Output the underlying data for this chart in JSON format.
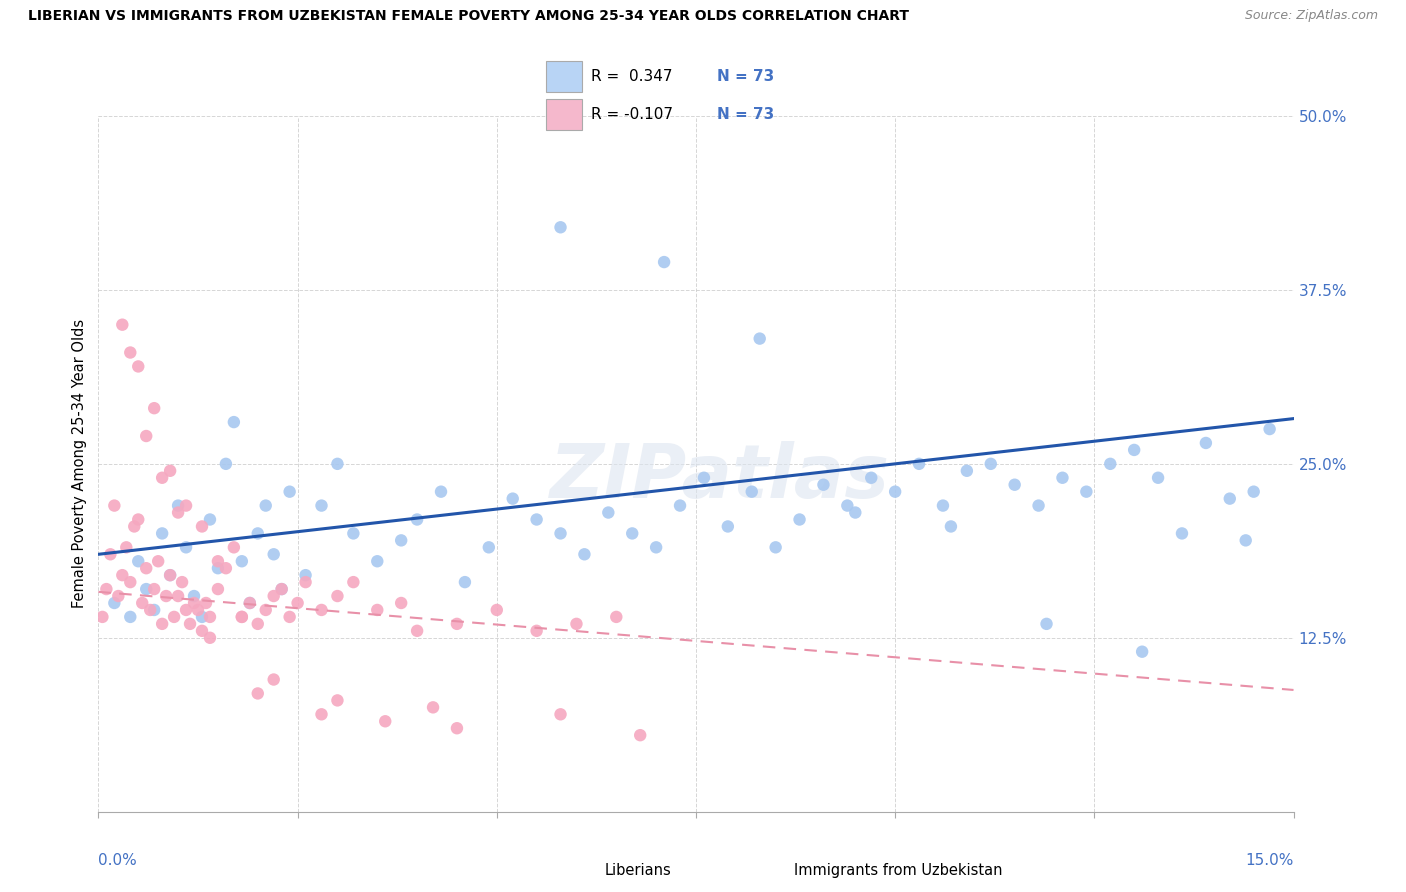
{
  "title": "LIBERIAN VS IMMIGRANTS FROM UZBEKISTAN FEMALE POVERTY AMONG 25-34 YEAR OLDS CORRELATION CHART",
  "source": "Source: ZipAtlas.com",
  "ylabel_axis_label": "Female Poverty Among 25-34 Year Olds",
  "xmin": 0.0,
  "xmax": 15.0,
  "ymin": 0.0,
  "ymax": 50.0,
  "yticks": [
    0,
    12.5,
    25.0,
    37.5,
    50.0
  ],
  "ytick_labels": [
    "",
    "12.5%",
    "25.0%",
    "37.5%",
    "50.0%"
  ],
  "legend_r_blue": "R =  0.347",
  "legend_n_blue": "N = 73",
  "legend_r_pink": "R = -0.107",
  "legend_n_pink": "N = 73",
  "watermark": "ZIPatlas",
  "blue_dot_color": "#a8c8f0",
  "pink_dot_color": "#f5a8c0",
  "blue_line_color": "#2255aa",
  "pink_line_color": "#e890a8",
  "legend_blue_fill": "#b8d4f5",
  "legend_pink_fill": "#f5b8cc",
  "blue_scatter_x": [
    0.2,
    0.4,
    0.5,
    0.6,
    0.7,
    0.8,
    0.9,
    1.0,
    1.1,
    1.2,
    1.3,
    1.4,
    1.5,
    1.6,
    1.7,
    1.8,
    1.9,
    2.0,
    2.1,
    2.2,
    2.3,
    2.4,
    2.6,
    2.8,
    3.0,
    3.2,
    3.5,
    3.8,
    4.0,
    4.3,
    4.6,
    4.9,
    5.2,
    5.5,
    5.8,
    6.1,
    6.4,
    6.7,
    7.0,
    7.3,
    7.6,
    7.9,
    8.2,
    8.5,
    8.8,
    9.1,
    9.4,
    9.7,
    10.0,
    10.3,
    10.6,
    10.9,
    11.2,
    11.5,
    11.8,
    12.1,
    12.4,
    12.7,
    13.0,
    13.3,
    13.6,
    13.9,
    14.2,
    14.5,
    14.7,
    5.8,
    7.1,
    8.3,
    9.5,
    10.7,
    11.9,
    13.1,
    14.4
  ],
  "blue_scatter_y": [
    15.0,
    14.0,
    18.0,
    16.0,
    14.5,
    20.0,
    17.0,
    22.0,
    19.0,
    15.5,
    14.0,
    21.0,
    17.5,
    25.0,
    28.0,
    18.0,
    15.0,
    20.0,
    22.0,
    18.5,
    16.0,
    23.0,
    17.0,
    22.0,
    25.0,
    20.0,
    18.0,
    19.5,
    21.0,
    23.0,
    16.5,
    19.0,
    22.5,
    21.0,
    20.0,
    18.5,
    21.5,
    20.0,
    19.0,
    22.0,
    24.0,
    20.5,
    23.0,
    19.0,
    21.0,
    23.5,
    22.0,
    24.0,
    23.0,
    25.0,
    22.0,
    24.5,
    25.0,
    23.5,
    22.0,
    24.0,
    23.0,
    25.0,
    26.0,
    24.0,
    20.0,
    26.5,
    22.5,
    23.0,
    27.5,
    42.0,
    39.5,
    34.0,
    21.5,
    20.5,
    13.5,
    11.5,
    19.5
  ],
  "pink_scatter_x": [
    0.05,
    0.1,
    0.15,
    0.2,
    0.25,
    0.3,
    0.35,
    0.4,
    0.45,
    0.5,
    0.55,
    0.6,
    0.65,
    0.7,
    0.75,
    0.8,
    0.85,
    0.9,
    0.95,
    1.0,
    1.05,
    1.1,
    1.15,
    1.2,
    1.25,
    1.3,
    1.35,
    1.4,
    1.5,
    1.6,
    1.7,
    1.8,
    1.9,
    2.0,
    2.1,
    2.2,
    2.3,
    2.4,
    2.5,
    2.6,
    2.8,
    3.0,
    3.2,
    3.5,
    3.8,
    4.0,
    4.5,
    5.0,
    5.5,
    6.0,
    6.5,
    0.3,
    0.5,
    0.7,
    0.9,
    1.1,
    1.3,
    1.5,
    1.8,
    2.2,
    3.0,
    4.2,
    5.8,
    0.4,
    0.6,
    0.8,
    1.0,
    1.4,
    2.0,
    2.8,
    3.6,
    4.5,
    6.8
  ],
  "pink_scatter_y": [
    14.0,
    16.0,
    18.5,
    22.0,
    15.5,
    17.0,
    19.0,
    16.5,
    20.5,
    21.0,
    15.0,
    17.5,
    14.5,
    16.0,
    18.0,
    13.5,
    15.5,
    17.0,
    14.0,
    15.5,
    16.5,
    14.5,
    13.5,
    15.0,
    14.5,
    13.0,
    15.0,
    14.0,
    16.0,
    17.5,
    19.0,
    14.0,
    15.0,
    13.5,
    14.5,
    15.5,
    16.0,
    14.0,
    15.0,
    16.5,
    14.5,
    15.5,
    16.5,
    14.5,
    15.0,
    13.0,
    13.5,
    14.5,
    13.0,
    13.5,
    14.0,
    35.0,
    32.0,
    29.0,
    24.5,
    22.0,
    20.5,
    18.0,
    14.0,
    9.5,
    8.0,
    7.5,
    7.0,
    33.0,
    27.0,
    24.0,
    21.5,
    12.5,
    8.5,
    7.0,
    6.5,
    6.0,
    5.5
  ]
}
